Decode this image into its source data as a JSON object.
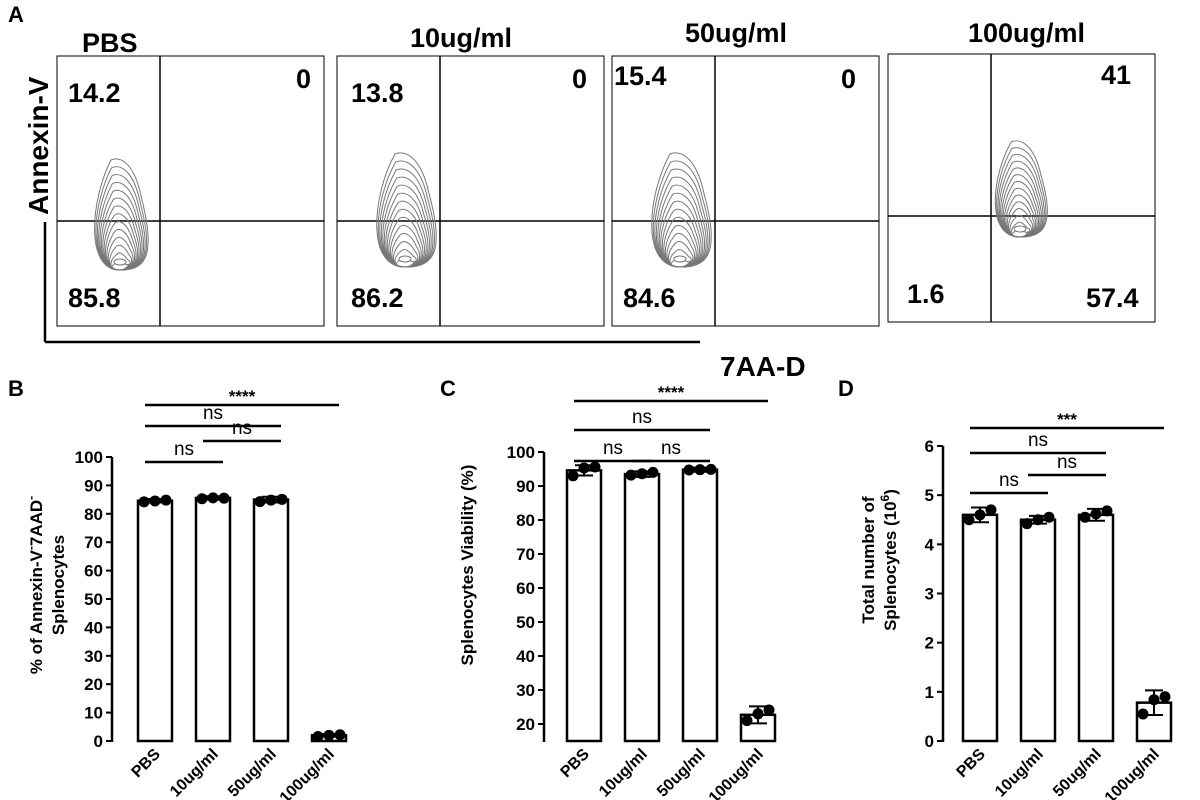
{
  "panel_a": {
    "label": "A",
    "y_axis_label": "Annexin-V",
    "x_axis_label": "7AA-D",
    "plots": [
      {
        "title": "PBS",
        "q_upper_left": "14.2",
        "q_upper_right": "0",
        "q_lower_left": "85.8",
        "q_lower_right": ""
      },
      {
        "title": "10ug/ml",
        "q_upper_left": "13.8",
        "q_upper_right": "0",
        "q_lower_left": "86.2",
        "q_lower_right": ""
      },
      {
        "title": "50ug/ml",
        "q_upper_left": "15.4",
        "q_upper_right": "0",
        "q_lower_left": "84.6",
        "q_lower_right": ""
      },
      {
        "title": "100ug/ml",
        "q_upper_left": "",
        "q_upper_right": "41",
        "q_lower_left": "1.6",
        "q_lower_right": "57.4"
      }
    ]
  },
  "chart_data": [
    {
      "panel": "B",
      "type": "bar",
      "categories": [
        "PBS",
        "10ug/ml",
        "50ug/ml",
        "100ug/ml"
      ],
      "values": [
        84.6,
        85.6,
        85.0,
        2.0
      ],
      "errors": [
        0.6,
        0.6,
        1.0,
        0.4
      ],
      "points": [
        [
          84.2,
          84.5,
          84.8
        ],
        [
          85.3,
          85.6,
          85.5
        ],
        [
          84.3,
          84.8,
          85.1
        ],
        [
          1.6,
          2.0,
          2.2
        ]
      ],
      "ylabel_line1": "% of Annexin-V",
      "ylabel_sup1": "-",
      "ylabel_mid": "7AAD",
      "ylabel_sup2": "-",
      "ylabel_line2": "Splenocytes",
      "ylim": [
        0,
        100
      ],
      "yticks": [
        "0",
        "10",
        "20",
        "30",
        "40",
        "50",
        "60",
        "70",
        "80",
        "90",
        "100"
      ],
      "comparisons": [
        {
          "from": 0,
          "to": 1,
          "label": "ns"
        },
        {
          "from": 1,
          "to": 2,
          "label": "ns"
        },
        {
          "from": 0,
          "to": 2,
          "label": "ns"
        },
        {
          "from": 0,
          "to": 3,
          "label": "****"
        }
      ]
    },
    {
      "panel": "C",
      "type": "bar",
      "categories": [
        "PBS",
        "10ug/ml",
        "50ug/ml",
        "100ug/ml"
      ],
      "values": [
        94.6,
        93.5,
        94.8,
        22.7
      ],
      "errors": [
        1.5,
        0.8,
        0.6,
        2.5
      ],
      "points": [
        [
          93.0,
          95.3,
          95.6
        ],
        [
          93.2,
          93.6,
          94.0
        ],
        [
          94.7,
          94.8,
          94.9
        ],
        [
          21.0,
          23.0,
          24.1
        ]
      ],
      "ylabel": "Splenocytes Viability (%)",
      "ylim": [
        15,
        100
      ],
      "yticks": [
        "20",
        "30",
        "40",
        "50",
        "60",
        "70",
        "80",
        "90",
        "100"
      ],
      "comparisons": [
        {
          "from": 0,
          "to": 1,
          "label": "ns"
        },
        {
          "from": 1,
          "to": 2,
          "label": "ns"
        },
        {
          "from": 0,
          "to": 2,
          "label": "ns"
        },
        {
          "from": 0,
          "to": 3,
          "label": "****"
        }
      ]
    },
    {
      "panel": "D",
      "type": "bar",
      "categories": [
        "PBS",
        "10ug/ml",
        "50ug/ml",
        "100ug/ml"
      ],
      "values": [
        4.6,
        4.5,
        4.6,
        0.78
      ],
      "errors": [
        0.15,
        0.08,
        0.12,
        0.25
      ],
      "points": [
        [
          4.5,
          4.6,
          4.7
        ],
        [
          4.42,
          4.5,
          4.55
        ],
        [
          4.55,
          4.62,
          4.68
        ],
        [
          0.55,
          0.84,
          0.9
        ]
      ],
      "ylabel_line1": "Total number of",
      "ylabel_line2": "Splenocytes (10",
      "ylabel_sup": "6",
      "ylabel_close": ")",
      "ylim": [
        0,
        6
      ],
      "yticks": [
        "0",
        "1",
        "2",
        "3",
        "4",
        "5",
        "6"
      ],
      "comparisons": [
        {
          "from": 0,
          "to": 1,
          "label": "ns"
        },
        {
          "from": 1,
          "to": 2,
          "label": "ns"
        },
        {
          "from": 0,
          "to": 2,
          "label": "ns"
        },
        {
          "from": 0,
          "to": 3,
          "label": "***"
        }
      ]
    }
  ]
}
